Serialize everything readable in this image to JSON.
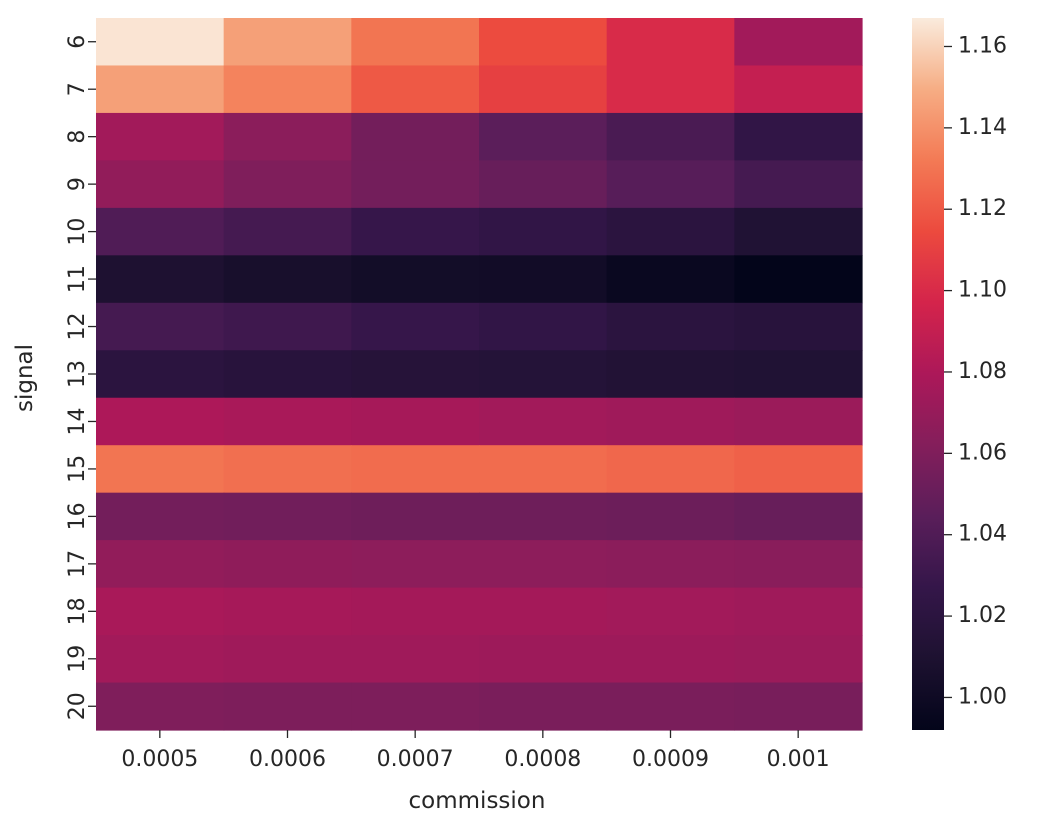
{
  "chart_data": {
    "type": "heatmap",
    "xlabel": "commission",
    "ylabel": "signal",
    "x_categories": [
      "0.0005",
      "0.0006",
      "0.0007",
      "0.0008",
      "0.0009",
      "0.001"
    ],
    "y_categories": [
      "6",
      "7",
      "8",
      "9",
      "10",
      "11",
      "12",
      "13",
      "14",
      "15",
      "16",
      "17",
      "18",
      "19",
      "20"
    ],
    "values": [
      [
        1.165,
        1.145,
        1.13,
        1.115,
        1.1,
        1.075
      ],
      [
        1.145,
        1.135,
        1.12,
        1.11,
        1.1,
        1.09
      ],
      [
        1.075,
        1.065,
        1.055,
        1.045,
        1.037,
        1.025
      ],
      [
        1.068,
        1.06,
        1.055,
        1.05,
        1.043,
        1.035
      ],
      [
        1.04,
        1.035,
        1.028,
        1.025,
        1.02,
        1.012
      ],
      [
        1.01,
        1.006,
        1.003,
        1.002,
        0.997,
        0.992
      ],
      [
        1.035,
        1.032,
        1.028,
        1.025,
        1.02,
        1.018
      ],
      [
        1.02,
        1.018,
        1.016,
        1.015,
        1.013,
        1.012
      ],
      [
        1.08,
        1.078,
        1.077,
        1.075,
        1.074,
        1.072
      ],
      [
        1.13,
        1.128,
        1.127,
        1.127,
        1.125,
        1.123
      ],
      [
        1.055,
        1.054,
        1.053,
        1.053,
        1.052,
        1.05
      ],
      [
        1.068,
        1.067,
        1.066,
        1.066,
        1.065,
        1.064
      ],
      [
        1.078,
        1.077,
        1.076,
        1.076,
        1.075,
        1.074
      ],
      [
        1.075,
        1.074,
        1.074,
        1.073,
        1.073,
        1.072
      ],
      [
        1.06,
        1.059,
        1.059,
        1.058,
        1.058,
        1.057
      ]
    ],
    "colorbar": {
      "min": 0.992,
      "max": 1.167,
      "ticks": [
        "1.00",
        "1.02",
        "1.04",
        "1.06",
        "1.08",
        "1.10",
        "1.12",
        "1.14",
        "1.16"
      ]
    },
    "colormap": "rocket"
  }
}
